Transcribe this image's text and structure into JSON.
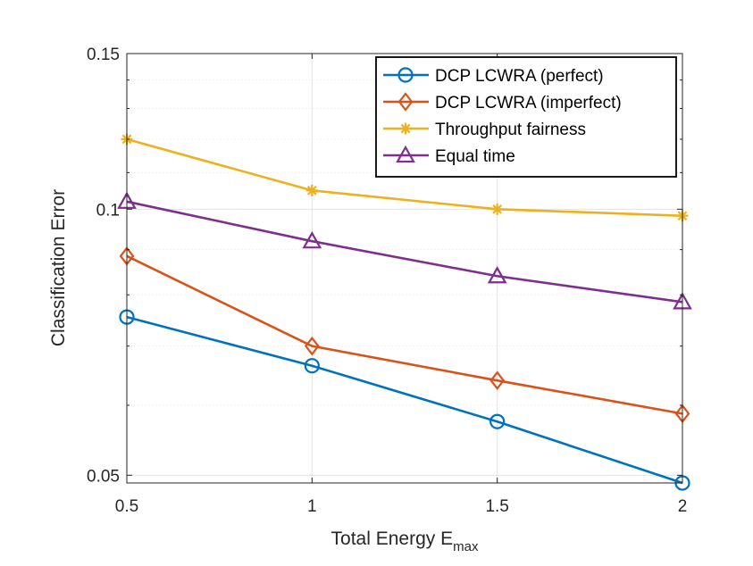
{
  "chart_data": {
    "type": "line",
    "xlabel": "Total Energy E",
    "xlabel_subscript": "max",
    "ylabel": "Classification Error",
    "x": [
      0.5,
      1,
      1.5,
      2
    ],
    "xlim": [
      0.5,
      2
    ],
    "ylim": [
      0.049,
      0.15
    ],
    "yscale": "log",
    "x_ticks": [
      "0.5",
      "1",
      "1.5",
      "2"
    ],
    "y_ticks": [
      {
        "value": 0.05,
        "label": "0.05"
      },
      {
        "value": 0.1,
        "label": "0.1"
      },
      {
        "value": 0.15,
        "label": "0.15"
      }
    ],
    "grid": true,
    "legend_position": "top-right",
    "series": [
      {
        "name": "DCP LCWRA (perfect)",
        "color": "#0072BD",
        "marker": "circle",
        "values": [
          0.0755,
          0.0665,
          0.0575,
          0.049
        ]
      },
      {
        "name": "DCP LCWRA (imperfect)",
        "color": "#D95319",
        "marker": "diamond",
        "values": [
          0.0885,
          0.07,
          0.064,
          0.0587
        ]
      },
      {
        "name": "Throughput fairness",
        "color": "#EDB120",
        "marker": "asterisk",
        "values": [
          0.12,
          0.105,
          0.1,
          0.0983
        ]
      },
      {
        "name": "Equal time",
        "color": "#7E2F8E",
        "marker": "triangle",
        "values": [
          0.102,
          0.092,
          0.084,
          0.0785
        ]
      }
    ]
  }
}
